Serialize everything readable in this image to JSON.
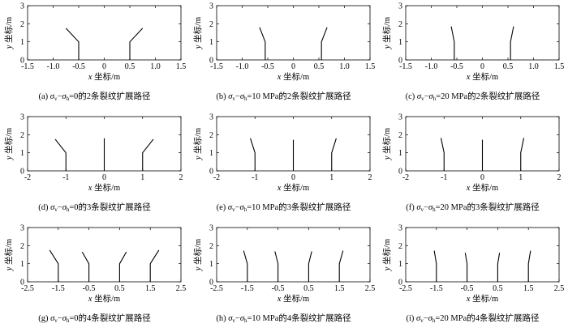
{
  "chart_data": [
    {
      "id": "a",
      "type": "line",
      "caption": {
        "label": "(a) ",
        "sym1": "σ",
        "sub1": "v",
        "dash": "−",
        "sym2": "σ",
        "sub2": "h",
        "rest": "=0的2条裂纹扩展路径"
      },
      "xlabel_var": "x",
      "xlabel": " 坐标/m",
      "ylabel_var": "y",
      "ylabel": " 坐标/m",
      "xlim": [
        -1.5,
        1.5
      ],
      "ylim": [
        0,
        3
      ],
      "xticks": [
        "-1.5",
        "-1.0",
        "-0.5",
        "0",
        "0.5",
        "1.0",
        "1.5"
      ],
      "xtick_vals": [
        -1.5,
        -1.0,
        -0.5,
        0,
        0.5,
        1.0,
        1.5
      ],
      "yticks": [
        "0",
        "1",
        "2",
        "3"
      ],
      "ytick_vals": [
        0,
        1,
        2,
        3
      ],
      "series": [
        {
          "x": [
            -0.5,
            -0.5,
            -0.75
          ],
          "y": [
            0,
            1.0,
            1.75
          ]
        },
        {
          "x": [
            0.5,
            0.5,
            0.75
          ],
          "y": [
            0,
            1.0,
            1.75
          ]
        }
      ]
    },
    {
      "id": "b",
      "type": "line",
      "caption": {
        "label": "(b) ",
        "sym1": "σ",
        "sub1": "v",
        "dash": "−",
        "sym2": "σ",
        "sub2": "h",
        "rest": "=10 MPa的2条裂纹扩展路径"
      },
      "xlabel_var": "x",
      "xlabel": " 坐标/m",
      "ylabel_var": "y",
      "ylabel": " 坐标/m",
      "xlim": [
        -1.5,
        1.5
      ],
      "ylim": [
        0,
        3
      ],
      "xticks": [
        "-1.5",
        "-1.0",
        "-0.5",
        "0",
        "0.5",
        "1.0",
        "1.5"
      ],
      "xtick_vals": [
        -1.5,
        -1.0,
        -0.5,
        0,
        0.5,
        1.0,
        1.5
      ],
      "yticks": [
        "0",
        "1",
        "2",
        "3"
      ],
      "ytick_vals": [
        0,
        1,
        2,
        3
      ],
      "series": [
        {
          "x": [
            -0.55,
            -0.55,
            -0.66
          ],
          "y": [
            0,
            1.0,
            1.8
          ]
        },
        {
          "x": [
            0.55,
            0.55,
            0.66
          ],
          "y": [
            0,
            1.0,
            1.8
          ]
        }
      ]
    },
    {
      "id": "c",
      "type": "line",
      "caption": {
        "label": "(c) ",
        "sym1": "σ",
        "sub1": "v",
        "dash": "−",
        "sym2": "σ",
        "sub2": "h",
        "rest": "=20 MPa的2条裂纹扩展路径"
      },
      "xlabel_var": "x",
      "xlabel": " 坐标/m",
      "ylabel_var": "y",
      "ylabel": " 坐标/m",
      "xlim": [
        -1.5,
        1.5
      ],
      "ylim": [
        0,
        3
      ],
      "xticks": [
        "-1.5",
        "-1.0",
        "-0.5",
        "0",
        "0.5",
        "1.0",
        "1.5"
      ],
      "xtick_vals": [
        -1.5,
        -1.0,
        -0.5,
        0,
        0.5,
        1.0,
        1.5
      ],
      "yticks": [
        "0",
        "1",
        "2",
        "3"
      ],
      "ytick_vals": [
        0,
        1,
        2,
        3
      ],
      "series": [
        {
          "x": [
            -0.55,
            -0.55,
            -0.61
          ],
          "y": [
            0,
            1.0,
            1.85
          ]
        },
        {
          "x": [
            0.55,
            0.55,
            0.61
          ],
          "y": [
            0,
            1.0,
            1.85
          ]
        }
      ]
    },
    {
      "id": "d",
      "type": "line",
      "caption": {
        "label": "(d) ",
        "sym1": "σ",
        "sub1": "v",
        "dash": "−",
        "sym2": "σ",
        "sub2": "h",
        "rest": "=0的3条裂纹扩展路径"
      },
      "xlabel_var": "x",
      "xlabel": " 坐标/m",
      "ylabel_var": "y",
      "ylabel": " 坐标/m",
      "xlim": [
        -2,
        2
      ],
      "ylim": [
        0,
        3
      ],
      "xticks": [
        "-2",
        "-1",
        "0",
        "1",
        "2"
      ],
      "xtick_vals": [
        -2,
        -1,
        0,
        1,
        2
      ],
      "yticks": [
        "0",
        "1",
        "2",
        "3"
      ],
      "ytick_vals": [
        0,
        1,
        2,
        3
      ],
      "series": [
        {
          "x": [
            -1.0,
            -1.0,
            -1.28
          ],
          "y": [
            0,
            1.0,
            1.75
          ]
        },
        {
          "x": [
            0,
            0,
            0
          ],
          "y": [
            0,
            1.0,
            1.8
          ]
        },
        {
          "x": [
            1.0,
            1.0,
            1.28
          ],
          "y": [
            0,
            1.0,
            1.75
          ]
        }
      ]
    },
    {
      "id": "e",
      "type": "line",
      "caption": {
        "label": "(e) ",
        "sym1": "σ",
        "sub1": "v",
        "dash": "−",
        "sym2": "σ",
        "sub2": "h",
        "rest": "=10 MPa的3条裂纹扩展路径"
      },
      "xlabel_var": "x",
      "xlabel": " 坐标/m",
      "ylabel_var": "y",
      "ylabel": " 坐标/m",
      "xlim": [
        -2,
        2
      ],
      "ylim": [
        0,
        3
      ],
      "xticks": [
        "-2",
        "-1",
        "0",
        "1",
        "2"
      ],
      "xtick_vals": [
        -2,
        -1,
        0,
        1,
        2
      ],
      "yticks": [
        "0",
        "1",
        "2",
        "3"
      ],
      "ytick_vals": [
        0,
        1,
        2,
        3
      ],
      "series": [
        {
          "x": [
            -1.0,
            -1.0,
            -1.12
          ],
          "y": [
            0,
            1.0,
            1.8
          ]
        },
        {
          "x": [
            0,
            0,
            0
          ],
          "y": [
            0,
            1.0,
            1.72
          ]
        },
        {
          "x": [
            1.0,
            1.0,
            1.12
          ],
          "y": [
            0,
            1.0,
            1.8
          ]
        }
      ]
    },
    {
      "id": "f",
      "type": "line",
      "caption": {
        "label": "(f) ",
        "sym1": "σ",
        "sub1": "v",
        "dash": "−",
        "sym2": "σ",
        "sub2": "h",
        "rest": "=20 MPa的3条裂纹扩展路径"
      },
      "xlabel_var": "x",
      "xlabel": " 坐标/m",
      "ylabel_var": "y",
      "ylabel": " 坐标/m",
      "xlim": [
        -2,
        2
      ],
      "ylim": [
        0,
        3
      ],
      "xticks": [
        "-2",
        "-1",
        "0",
        "1",
        "2"
      ],
      "xtick_vals": [
        -2,
        -1,
        0,
        1,
        2
      ],
      "yticks": [
        "0",
        "1",
        "2",
        "3"
      ],
      "ytick_vals": [
        0,
        1,
        2,
        3
      ],
      "series": [
        {
          "x": [
            -1.0,
            -1.0,
            -1.08
          ],
          "y": [
            0,
            1.0,
            1.82
          ]
        },
        {
          "x": [
            0,
            0,
            0
          ],
          "y": [
            0,
            1.0,
            1.72
          ]
        },
        {
          "x": [
            1.0,
            1.0,
            1.08
          ],
          "y": [
            0,
            1.0,
            1.82
          ]
        }
      ]
    },
    {
      "id": "g",
      "type": "line",
      "caption": {
        "label": "(g) ",
        "sym1": "σ",
        "sub1": "v",
        "dash": "−",
        "sym2": "σ",
        "sub2": "h",
        "rest": "=0的4条裂纹扩展路径"
      },
      "xlabel_var": "x",
      "xlabel": " 坐标/m",
      "ylabel_var": "y",
      "ylabel": " 坐标/m",
      "xlim": [
        -2.5,
        2.5
      ],
      "ylim": [
        0,
        3
      ],
      "xticks": [
        "-2.5",
        "-1.5",
        "-0.5",
        "0.5",
        "1.5",
        "2.5"
      ],
      "xtick_vals": [
        -2.5,
        -1.5,
        -0.5,
        0.5,
        1.5,
        2.5
      ],
      "yticks": [
        "0",
        "1",
        "2",
        "3"
      ],
      "ytick_vals": [
        0,
        1,
        2,
        3
      ],
      "series": [
        {
          "x": [
            -1.5,
            -1.5,
            -1.78
          ],
          "y": [
            0,
            1.0,
            1.75
          ]
        },
        {
          "x": [
            -0.5,
            -0.5,
            -0.72
          ],
          "y": [
            0,
            1.0,
            1.65
          ]
        },
        {
          "x": [
            0.5,
            0.5,
            0.72
          ],
          "y": [
            0,
            1.0,
            1.65
          ]
        },
        {
          "x": [
            1.5,
            1.5,
            1.78
          ],
          "y": [
            0,
            1.0,
            1.75
          ]
        }
      ]
    },
    {
      "id": "h",
      "type": "line",
      "caption": {
        "label": "(h) ",
        "sym1": "σ",
        "sub1": "v",
        "dash": "−",
        "sym2": "σ",
        "sub2": "h",
        "rest": "=10 MPa的4条裂纹扩展路径"
      },
      "xlabel_var": "x",
      "xlabel": " 坐标/m",
      "ylabel_var": "y",
      "ylabel": " 坐标/m",
      "xlim": [
        -2.5,
        2.5
      ],
      "ylim": [
        0,
        3
      ],
      "xticks": [
        "-2.5",
        "-1.5",
        "-0.5",
        "0.5",
        "1.5",
        "2.5"
      ],
      "xtick_vals": [
        -2.5,
        -1.5,
        -0.5,
        0.5,
        1.5,
        2.5
      ],
      "yticks": [
        "0",
        "1",
        "2",
        "3"
      ],
      "ytick_vals": [
        0,
        1,
        2,
        3
      ],
      "series": [
        {
          "x": [
            -1.5,
            -1.5,
            -1.62
          ],
          "y": [
            0,
            1.0,
            1.72
          ]
        },
        {
          "x": [
            -0.5,
            -0.5,
            -0.6
          ],
          "y": [
            0,
            1.0,
            1.68
          ]
        },
        {
          "x": [
            0.5,
            0.5,
            0.6
          ],
          "y": [
            0,
            1.0,
            1.68
          ]
        },
        {
          "x": [
            1.5,
            1.5,
            1.62
          ],
          "y": [
            0,
            1.0,
            1.72
          ]
        }
      ]
    },
    {
      "id": "i",
      "type": "line",
      "caption": {
        "label": "(i) ",
        "sym1": "σ",
        "sub1": "v",
        "dash": "−",
        "sym2": "σ",
        "sub2": "h",
        "rest": "=20 MPa的4条裂纹扩展路径"
      },
      "xlabel_var": "x",
      "xlabel": " 坐标/m",
      "ylabel_var": "y",
      "ylabel": " 坐标/m",
      "xlim": [
        -2.5,
        2.5
      ],
      "ylim": [
        0,
        3
      ],
      "xticks": [
        "-2.5",
        "-1.5",
        "-0.5",
        "0.5",
        "1.5",
        "2.5"
      ],
      "xtick_vals": [
        -2.5,
        -1.5,
        -0.5,
        0.5,
        1.5,
        2.5
      ],
      "yticks": [
        "0",
        "1",
        "2",
        "3"
      ],
      "ytick_vals": [
        0,
        1,
        2,
        3
      ],
      "series": [
        {
          "x": [
            -1.5,
            -1.5,
            -1.57
          ],
          "y": [
            0,
            1.0,
            1.72
          ]
        },
        {
          "x": [
            -0.5,
            -0.5,
            -0.56
          ],
          "y": [
            0,
            1.0,
            1.6
          ]
        },
        {
          "x": [
            0.5,
            0.5,
            0.56
          ],
          "y": [
            0,
            1.0,
            1.6
          ]
        },
        {
          "x": [
            1.5,
            1.5,
            1.57
          ],
          "y": [
            0,
            1.0,
            1.72
          ]
        }
      ]
    }
  ]
}
